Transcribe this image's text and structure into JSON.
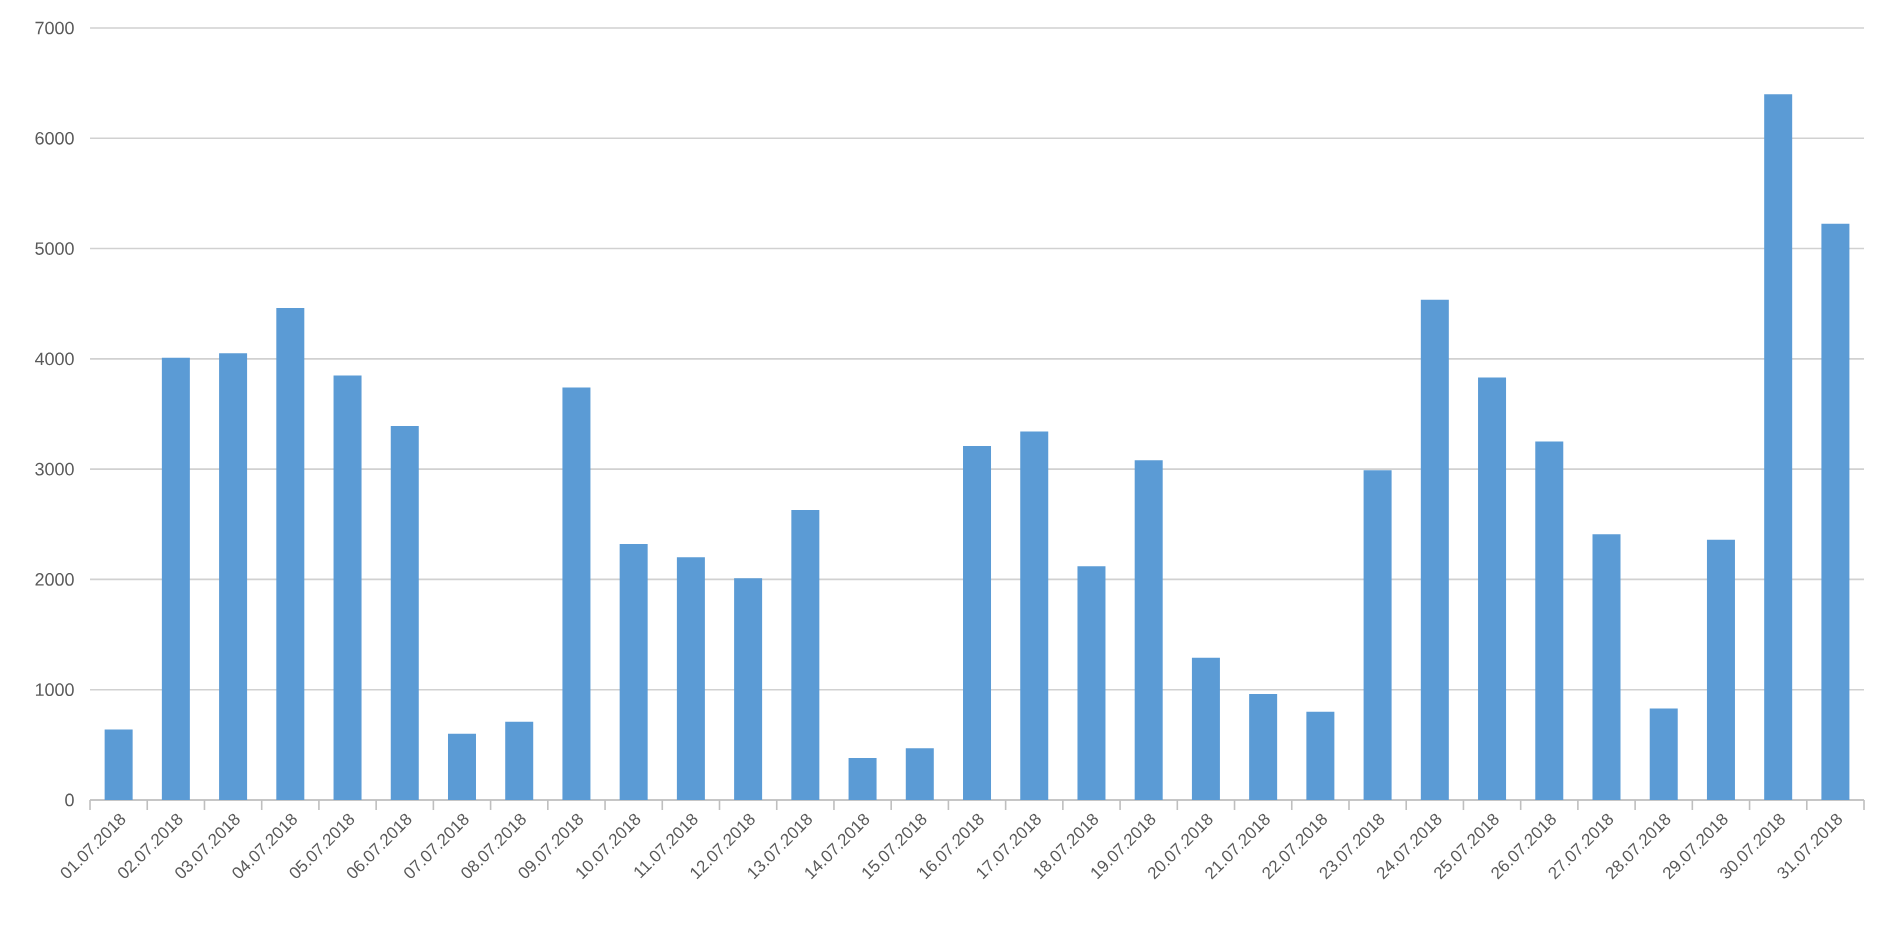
{
  "chart_data": {
    "type": "bar",
    "categories": [
      "01.07.2018",
      "02.07.2018",
      "03.07.2018",
      "04.07.2018",
      "05.07.2018",
      "06.07.2018",
      "07.07.2018",
      "08.07.2018",
      "09.07.2018",
      "10.07.2018",
      "11.07.2018",
      "12.07.2018",
      "13.07.2018",
      "14.07.2018",
      "15.07.2018",
      "16.07.2018",
      "17.07.2018",
      "18.07.2018",
      "19.07.2018",
      "20.07.2018",
      "21.07.2018",
      "22.07.2018",
      "23.07.2018",
      "24.07.2018",
      "25.07.2018",
      "26.07.2018",
      "27.07.2018",
      "28.07.2018",
      "29.07.2018",
      "30.07.2018",
      "31.07.2018"
    ],
    "values": [
      640,
      4010,
      4050,
      4460,
      3850,
      3390,
      600,
      710,
      3740,
      2320,
      2200,
      2010,
      2630,
      380,
      470,
      3210,
      3340,
      2120,
      3080,
      1290,
      960,
      800,
      2990,
      4535,
      3830,
      3250,
      2410,
      830,
      2360,
      6400,
      5225
    ],
    "color": "#5b9bd5",
    "ylim": [
      0,
      7000
    ],
    "yticks": [
      0,
      1000,
      2000,
      3000,
      4000,
      5000,
      6000,
      7000
    ],
    "grid": "y"
  }
}
